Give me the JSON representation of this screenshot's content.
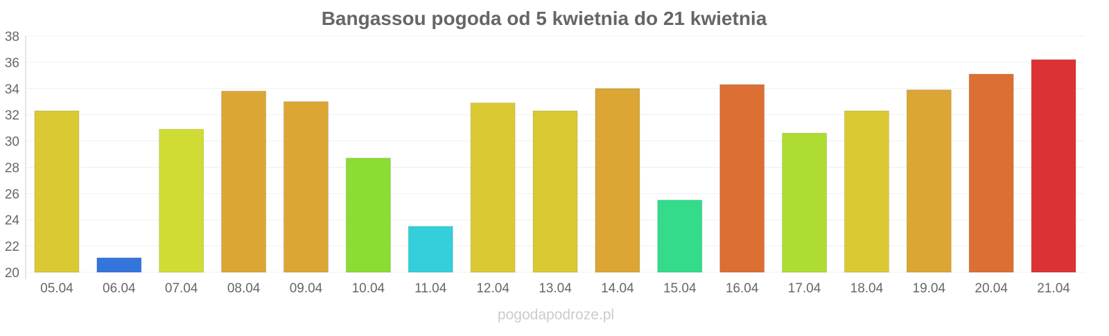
{
  "chart_data": {
    "type": "bar",
    "title": "Bangassou pogoda od 5 kwietnia do 21 kwietnia",
    "xlabel": "",
    "ylabel": "",
    "ylim": [
      20,
      38
    ],
    "yticks": [
      20,
      22,
      24,
      26,
      28,
      30,
      32,
      34,
      36,
      38
    ],
    "grid": true,
    "categories": [
      "05.04",
      "06.04",
      "07.04",
      "08.04",
      "09.04",
      "10.04",
      "11.04",
      "12.04",
      "13.04",
      "14.04",
      "15.04",
      "16.04",
      "17.04",
      "18.04",
      "19.04",
      "20.04",
      "21.04"
    ],
    "values": [
      32.3,
      21.1,
      30.9,
      33.8,
      33.0,
      28.7,
      23.5,
      32.9,
      32.3,
      34.0,
      25.5,
      34.3,
      30.6,
      32.3,
      33.9,
      35.1,
      36.2
    ],
    "colors": [
      "#dbc933",
      "#3375db",
      "#d0dc33",
      "#dba633",
      "#dba633",
      "#8bdc33",
      "#33cfdb",
      "#dbc933",
      "#dbc933",
      "#dba633",
      "#33db8b",
      "#dc6f33",
      "#aedc33",
      "#dbc933",
      "#dba633",
      "#dc6f33",
      "#db3333"
    ]
  },
  "watermark": "pogodapodroze.pl"
}
